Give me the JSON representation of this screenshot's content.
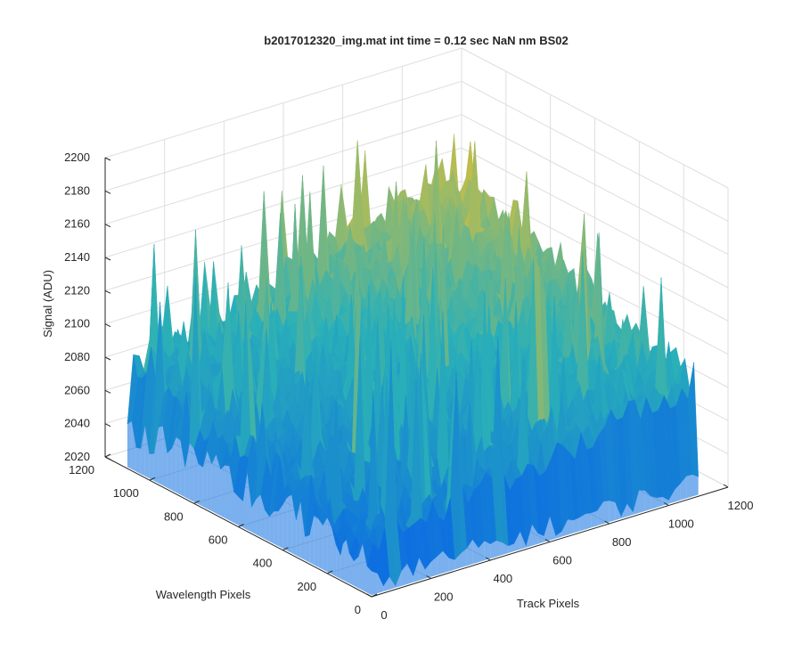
{
  "chart_data": {
    "type": "surface",
    "title": "b2017012320_img.mat int time = 0.12 sec  NaN nm BS02",
    "xlabel": "Track Pixels",
    "ylabel": "Wavelength Pixels",
    "zlabel": "Signal (ADU)",
    "xlim": [
      0,
      1200
    ],
    "ylim": [
      0,
      1200
    ],
    "zlim": [
      2020,
      2200
    ],
    "xticks": [
      "0",
      "200",
      "400",
      "600",
      "800",
      "1000",
      "1200"
    ],
    "yticks": [
      "0",
      "200",
      "400",
      "600",
      "800",
      "1000",
      "1200"
    ],
    "zticks": [
      "2020",
      "2040",
      "2060",
      "2080",
      "2100",
      "2120",
      "2140",
      "2160",
      "2180",
      "2200"
    ],
    "grid": true,
    "colormap": "parula",
    "surface": {
      "x_range": [
        0,
        1100
      ],
      "y_range": [
        0,
        1100
      ],
      "base_level": 2065,
      "level_at_track_max_wavelength_max": 2135,
      "level_at_track_max_wavelength_0": 2085,
      "level_at_track_0_wavelength_max": 2080,
      "level_at_origin": 2045,
      "noise_amplitude": 15,
      "spike_max": 2185,
      "color_low": "#0d6fe0",
      "color_mid": "#2ab0b8",
      "color_high": "#d8bf3a"
    }
  }
}
